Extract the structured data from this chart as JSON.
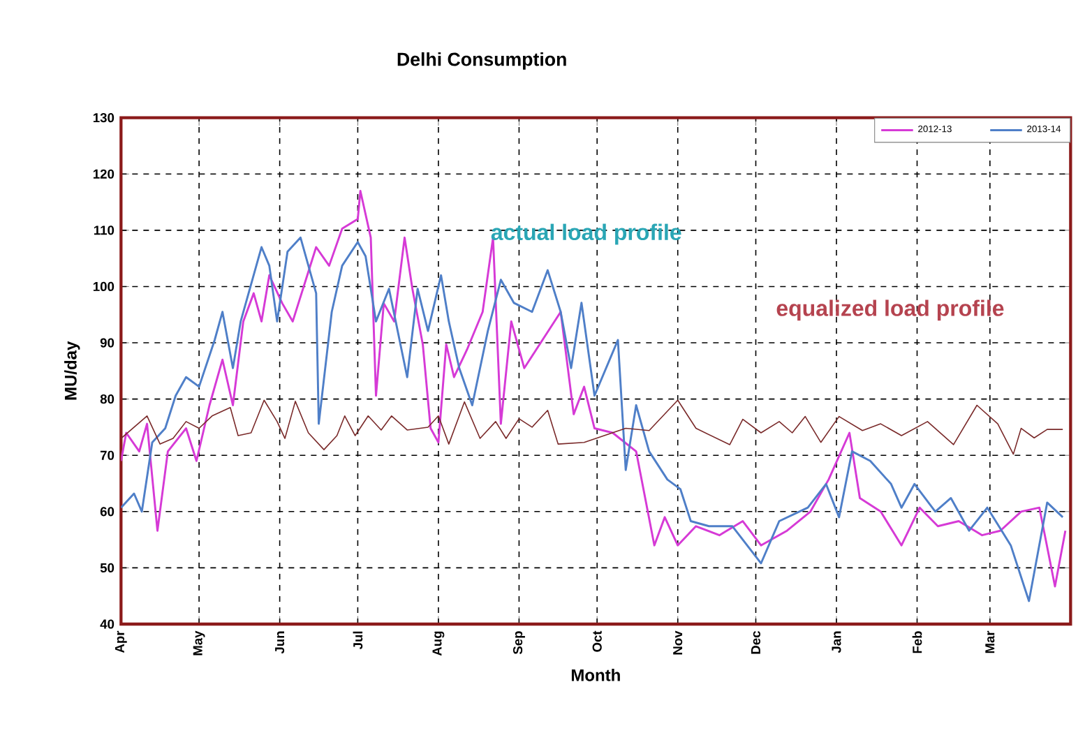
{
  "chart_data": {
    "type": "line",
    "title": "Delhi Consumption",
    "xlabel": "Month",
    "ylabel": "MU/day",
    "xlim": [
      "2012-04-01",
      "2013-03-31"
    ],
    "ylim": [
      40,
      130
    ],
    "xticks": [
      {
        "value": "2012-04-01",
        "label": "Apr"
      },
      {
        "value": "2012-05-01",
        "label": "May"
      },
      {
        "value": "2012-06-01",
        "label": "Jun"
      },
      {
        "value": "2012-07-01",
        "label": "Jul"
      },
      {
        "value": "2012-08-01",
        "label": "Aug"
      },
      {
        "value": "2012-09-01",
        "label": "Sep"
      },
      {
        "value": "2012-10-01",
        "label": "Oct"
      },
      {
        "value": "2012-11-01",
        "label": "Nov"
      },
      {
        "value": "2012-12-01",
        "label": "Dec"
      },
      {
        "value": "2013-01-01",
        "label": "Jan"
      },
      {
        "value": "2013-02-01",
        "label": "Feb"
      },
      {
        "value": "2013-03-01",
        "label": "Mar"
      }
    ],
    "yticks": [
      40,
      50,
      60,
      70,
      80,
      90,
      100,
      110,
      120,
      130
    ],
    "grid": true,
    "legend": "top right",
    "line_style": "solid",
    "series": [
      {
        "name": "2012-13",
        "color": "#d63ad6",
        "x": [
          "2012-04-01",
          "2012-04-03",
          "2012-04-08",
          "2012-04-11",
          "2012-04-15",
          "2012-04-19",
          "2012-04-26",
          "2012-04-30",
          "2012-05-05",
          "2012-05-10",
          "2012-05-14",
          "2012-05-18",
          "2012-05-22",
          "2012-05-25",
          "2012-05-28",
          "2012-06-02",
          "2012-06-06",
          "2012-06-15",
          "2012-06-20",
          "2012-06-25",
          "2012-07-01",
          "2012-07-02",
          "2012-07-06",
          "2012-07-08",
          "2012-07-11",
          "2012-07-15",
          "2012-07-19",
          "2012-07-22",
          "2012-07-26",
          "2012-07-29",
          "2012-08-01",
          "2012-08-04",
          "2012-08-07",
          "2012-08-12",
          "2012-08-18",
          "2012-08-22",
          "2012-08-25",
          "2012-08-29",
          "2012-09-03",
          "2012-09-10",
          "2012-09-17",
          "2012-09-22",
          "2012-09-26",
          "2012-09-30",
          "2012-10-07",
          "2012-10-16",
          "2012-10-23",
          "2012-10-27",
          "2012-11-01",
          "2012-11-08",
          "2012-11-17",
          "2012-11-26",
          "2012-12-03",
          "2012-12-13",
          "2012-12-22",
          "2012-12-29",
          "2013-01-06",
          "2013-01-10",
          "2013-01-18",
          "2013-01-26",
          "2013-02-02",
          "2013-02-09",
          "2013-02-17",
          "2013-02-26",
          "2013-03-05",
          "2013-03-13",
          "2013-03-20",
          "2013-03-26",
          "2013-03-30"
        ],
        "values": [
          69,
          74,
          70.7,
          75.6,
          56.6,
          70.7,
          74.8,
          69,
          78.9,
          87,
          78.9,
          93.8,
          98.8,
          93.8,
          102,
          97,
          93.8,
          107,
          103.7,
          110.3,
          112,
          117,
          108.7,
          80.6,
          97,
          93.8,
          108.7,
          99.6,
          89.7,
          74.8,
          72.3,
          89.7,
          83.9,
          88.8,
          95.5,
          108.7,
          75.6,
          93.8,
          85.5,
          90.5,
          95.5,
          77.3,
          82.2,
          74.8,
          74,
          70.7,
          54,
          59,
          54,
          57.4,
          55.8,
          58.3,
          54,
          56.6,
          60,
          65.7,
          74,
          62.4,
          60,
          54,
          60.7,
          57.4,
          58.3,
          55.8,
          56.6,
          60,
          60.7,
          46.7,
          56.6
        ]
      },
      {
        "name": "2013-14",
        "color": "#4f7fc8",
        "x": [
          "2012-04-01",
          "2012-04-06",
          "2012-04-09",
          "2012-04-13",
          "2012-04-18",
          "2012-04-22",
          "2012-04-26",
          "2012-05-01",
          "2012-05-07",
          "2012-05-10",
          "2012-05-14",
          "2012-05-17",
          "2012-05-23",
          "2012-05-25",
          "2012-05-28",
          "2012-05-31",
          "2012-06-04",
          "2012-06-09",
          "2012-06-15",
          "2012-06-16",
          "2012-06-21",
          "2012-06-25",
          "2012-07-01",
          "2012-07-04",
          "2012-07-08",
          "2012-07-13",
          "2012-07-20",
          "2012-07-24",
          "2012-07-28",
          "2012-08-02",
          "2012-08-05",
          "2012-08-09",
          "2012-08-14",
          "2012-08-20",
          "2012-08-25",
          "2012-08-30",
          "2012-09-06",
          "2012-09-12",
          "2012-09-17",
          "2012-09-21",
          "2012-09-25",
          "2012-09-30",
          "2012-10-09",
          "2012-10-12",
          "2012-10-16",
          "2012-10-21",
          "2012-10-28",
          "2012-11-02",
          "2012-11-06",
          "2012-11-13",
          "2012-11-22",
          "2012-12-03",
          "2012-12-10",
          "2012-12-21",
          "2012-12-28",
          "2013-01-02",
          "2013-01-07",
          "2013-01-14",
          "2013-01-22",
          "2013-01-26",
          "2013-01-31",
          "2013-02-08",
          "2013-02-14",
          "2013-02-21",
          "2013-02-28",
          "2013-03-09",
          "2013-03-16",
          "2013-03-23",
          "2013-03-29"
        ],
        "values": [
          60.7,
          63.2,
          60,
          72.3,
          74.8,
          80.6,
          83.9,
          82.2,
          90.5,
          95.5,
          85.5,
          93.8,
          103.7,
          107,
          103.7,
          93.8,
          106.2,
          108.7,
          98.8,
          75.6,
          95.5,
          103.7,
          107.9,
          105.4,
          93.8,
          99.6,
          83.9,
          99.6,
          92.1,
          102,
          93.8,
          85.5,
          78.9,
          92.1,
          101.2,
          97.1,
          95.5,
          102.9,
          95.5,
          85.5,
          97.1,
          80.6,
          90.5,
          67.4,
          78.9,
          70.7,
          65.7,
          64,
          58.3,
          57.4,
          57.4,
          50.8,
          58.3,
          60.7,
          64.9,
          59,
          70.7,
          69,
          64.9,
          60.7,
          64.9,
          60,
          62.4,
          56.6,
          60.7,
          54,
          44.1,
          61.6,
          59
        ]
      },
      {
        "color": "#7a2a2a",
        "x": [
          "2012-04-01",
          "2012-04-11",
          "2012-04-16",
          "2012-04-21",
          "2012-04-26",
          "2012-05-01",
          "2012-05-06",
          "2012-05-13",
          "2012-05-16",
          "2012-05-21",
          "2012-05-26",
          "2012-05-31",
          "2012-06-03",
          "2012-06-07",
          "2012-06-12",
          "2012-06-18",
          "2012-06-23",
          "2012-06-26",
          "2012-06-30",
          "2012-07-05",
          "2012-07-10",
          "2012-07-14",
          "2012-07-20",
          "2012-07-28",
          "2012-08-01",
          "2012-08-05",
          "2012-08-11",
          "2012-08-17",
          "2012-08-23",
          "2012-08-27",
          "2012-09-01",
          "2012-09-06",
          "2012-09-12",
          "2012-09-16",
          "2012-09-26",
          "2012-10-12",
          "2012-10-21",
          "2012-11-01",
          "2012-11-08",
          "2012-11-21",
          "2012-11-26",
          "2012-12-03",
          "2012-12-10",
          "2012-12-15",
          "2012-12-20",
          "2012-12-26",
          "2013-01-02",
          "2013-01-11",
          "2013-01-18",
          "2013-01-26",
          "2013-02-05",
          "2013-02-15",
          "2013-02-24",
          "2013-03-04",
          "2013-03-10",
          "2013-03-13",
          "2013-03-18",
          "2013-03-23",
          "2013-03-29"
        ],
        "values": [
          73,
          77,
          72,
          73,
          76,
          74.8,
          77,
          78.5,
          73.5,
          74,
          79.8,
          76,
          73,
          79.6,
          74,
          71,
          73.5,
          77,
          73.5,
          77,
          74.5,
          77,
          74.5,
          75,
          77,
          72,
          79.5,
          73,
          76,
          73,
          76.5,
          75,
          78,
          72,
          72.3,
          74.8,
          74.4,
          79.8,
          74.8,
          71.9,
          76.4,
          74,
          76,
          74,
          76.9,
          72.3,
          76.9,
          74.4,
          75.6,
          73.5,
          76,
          71.9,
          78.9,
          75.6,
          70.2,
          74.8,
          73.1,
          74.6,
          74.6
        ]
      }
    ],
    "annotations": [
      "actual load profile",
      "equalized load profile"
    ]
  }
}
